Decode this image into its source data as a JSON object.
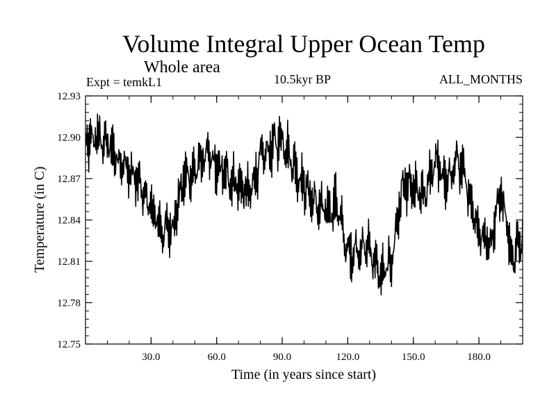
{
  "chart_data": {
    "type": "line",
    "title": "Volume Integral Upper Ocean Temp",
    "subtitle": "Whole area",
    "experiment": "Expt = temkL1",
    "period": "10.5kyr BP",
    "months": "ALL_MONTHS",
    "xlabel": "Time (in years since start)",
    "ylabel": "Temperature (in C)",
    "xlim": [
      0,
      200
    ],
    "ylim": [
      12.75,
      12.93
    ],
    "xticks": [
      30,
      60,
      90,
      120,
      150,
      180
    ],
    "xtick_labels": [
      "30.0",
      "60.0",
      "90.0",
      "120.0",
      "150.0",
      "180.0"
    ],
    "yticks": [
      12.75,
      12.78,
      12.81,
      12.84,
      12.87,
      12.9,
      12.93
    ],
    "ytick_labels": [
      "12.75",
      "12.78",
      "12.81",
      "12.84",
      "12.87",
      "12.90",
      "12.93"
    ],
    "series": [
      {
        "name": "temkL1",
        "x": [
          0,
          5,
          10,
          15,
          20,
          25,
          30,
          35,
          40,
          45,
          50,
          55,
          60,
          65,
          70,
          75,
          80,
          85,
          90,
          95,
          100,
          105,
          110,
          115,
          120,
          125,
          130,
          135,
          140,
          145,
          150,
          155,
          160,
          165,
          170,
          175,
          180,
          185,
          190,
          195,
          200
        ],
        "values": [
          12.895,
          12.9,
          12.895,
          12.885,
          12.875,
          12.865,
          12.848,
          12.832,
          12.836,
          12.87,
          12.875,
          12.888,
          12.878,
          12.872,
          12.865,
          12.858,
          12.884,
          12.893,
          12.9,
          12.88,
          12.865,
          12.852,
          12.845,
          12.852,
          12.815,
          12.82,
          12.82,
          12.798,
          12.81,
          12.865,
          12.862,
          12.855,
          12.885,
          12.865,
          12.885,
          12.862,
          12.832,
          12.822,
          12.862,
          12.815,
          12.828
        ]
      }
    ]
  }
}
